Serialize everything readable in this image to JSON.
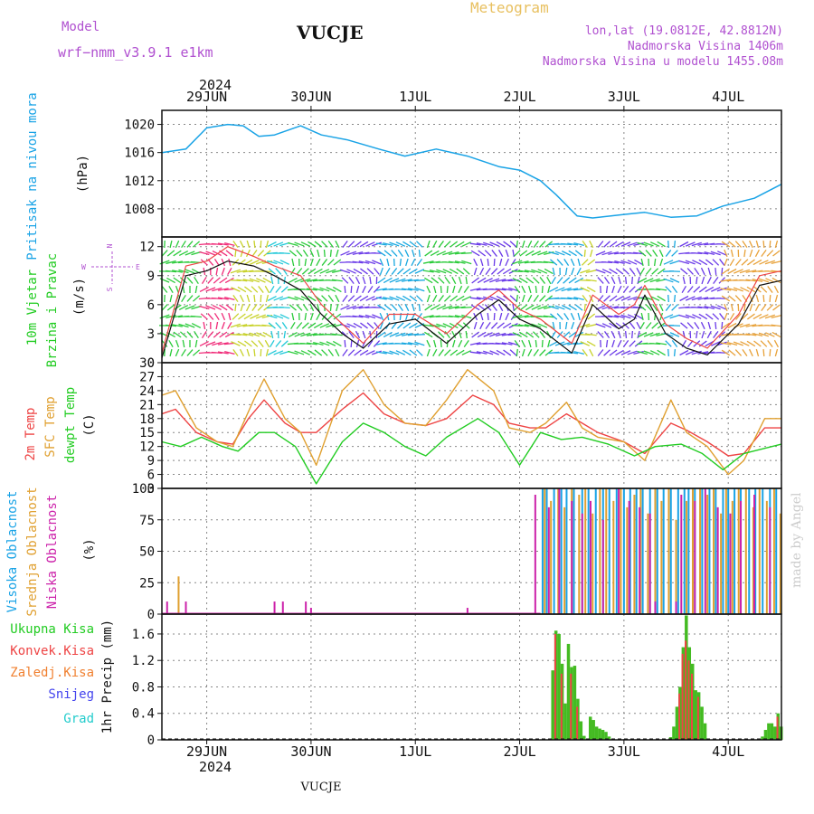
{
  "header": {
    "model_label": "Model",
    "model_name": "wrf−nmm_v3.9.1  e1km",
    "station": "VUCJE",
    "meteogram": "Meteogram",
    "lonlat": "lon,lat (19.0812E, 42.8812N)",
    "altitude": "Nadmorska Visina 1406m",
    "model_altitude": "Nadmorska Visina u modelu 1455.08m",
    "year": "2024",
    "bottom_title": "VUCJE",
    "credit": "made by Angel"
  },
  "colors": {
    "pressure": "#19a3e6",
    "temp2m": "#ee4444",
    "sfc": "#e0a030",
    "dewpt": "#22cc22",
    "grid": "#888888",
    "wind_mag": "#111111",
    "wind_gust": "#ee4444",
    "cloud_high": "#19a3e6",
    "cloud_mid": "#e0a030",
    "cloud_low": "#cc22aa",
    "precip_total": "#44bb22",
    "precip_conv": "#ee4444",
    "label_purple": "#b050d0"
  },
  "x_axis": {
    "top_labels": [
      "29JUN",
      "30JUN",
      "1JUL",
      "2JUL",
      "3JUL",
      "4JUL"
    ],
    "bottom_labels": [
      "29JUN",
      "30JUN",
      "1JUL",
      "2JUL",
      "3JUL",
      "4JUL"
    ],
    "day_positions": [
      1,
      2,
      3,
      4,
      5,
      6
    ],
    "range_days": [
      0.57,
      6.51
    ]
  },
  "chart_data": [
    {
      "type": "line",
      "panel": "pressure",
      "title": "",
      "ylabel": "Pritisak na nivou mora",
      "unit": "(hPa)",
      "ylim": [
        1004,
        1022
      ],
      "yticks": [
        1008,
        1012,
        1016,
        1020
      ],
      "grid": true,
      "series": [
        {
          "name": "Pritisak na nivou mora",
          "x": [
            0.57,
            0.8,
            1.0,
            1.2,
            1.35,
            1.5,
            1.65,
            1.9,
            2.1,
            2.35,
            2.65,
            2.9,
            3.2,
            3.5,
            3.8,
            4.0,
            4.2,
            4.35,
            4.55,
            4.7,
            5.0,
            5.2,
            5.45,
            5.7,
            5.95,
            6.25,
            6.51
          ],
          "y": [
            1016,
            1016.5,
            1019.5,
            1020,
            1019.8,
            1018.3,
            1018.5,
            1019.8,
            1018.5,
            1017.8,
            1016.5,
            1015.5,
            1016.5,
            1015.5,
            1014,
            1013.5,
            1012,
            1010,
            1007,
            1006.7,
            1007.2,
            1007.5,
            1006.8,
            1007,
            1008.4,
            1009.5,
            1011.5
          ]
        }
      ]
    },
    {
      "type": "line",
      "panel": "wind",
      "title": "",
      "ylabel": "10m Vjetar Brzina i Pravac",
      "unit": "(m/s)",
      "ylim": [
        0,
        13
      ],
      "yticks": [
        0,
        3,
        6,
        9,
        12
      ],
      "grid": true,
      "compass": {
        "north": "N",
        "south": "S",
        "west": "W",
        "east": "E"
      },
      "series": [
        {
          "name": "wind speed",
          "x": [
            0.57,
            0.8,
            1.0,
            1.2,
            1.45,
            1.65,
            1.9,
            2.1,
            2.3,
            2.5,
            2.75,
            3.0,
            3.3,
            3.6,
            3.8,
            4.0,
            4.2,
            4.5,
            4.7,
            4.95,
            5.1,
            5.2,
            5.4,
            5.6,
            5.8,
            6.1,
            6.3,
            6.51
          ],
          "y": [
            0.5,
            9,
            9.5,
            10.5,
            10,
            9,
            7.5,
            5,
            3,
            1.5,
            4,
            4.5,
            2,
            5,
            6.5,
            4.5,
            3.5,
            1,
            6,
            3.5,
            4.5,
            7,
            3,
            1.5,
            0.8,
            4,
            8,
            8.5
          ]
        },
        {
          "name": "gust",
          "x": [
            0.57,
            0.8,
            1.0,
            1.2,
            1.45,
            1.65,
            1.9,
            2.1,
            2.3,
            2.5,
            2.75,
            3.0,
            3.3,
            3.6,
            3.8,
            4.0,
            4.2,
            4.5,
            4.7,
            4.95,
            5.1,
            5.2,
            5.4,
            5.6,
            5.8,
            6.1,
            6.3,
            6.51
          ],
          "y": [
            1,
            10,
            10.5,
            12,
            11,
            10,
            9,
            6,
            4,
            2,
            5,
            5,
            3,
            6,
            7.5,
            5.5,
            4.5,
            2,
            7,
            5,
            6,
            8,
            4,
            2.5,
            1.5,
            5,
            9,
            9.5
          ]
        }
      ],
      "barb_bands": [
        {
          "x": [
            0.57,
            0.95
          ],
          "color": "#2acb3a"
        },
        {
          "x": [
            0.95,
            1.25
          ],
          "color": "#f02a78"
        },
        {
          "x": [
            1.25,
            1.6
          ],
          "color": "#c8d22a"
        },
        {
          "x": [
            1.6,
            1.8
          ],
          "color": "#20c8d8"
        },
        {
          "x": [
            1.8,
            2.3
          ],
          "color": "#2acb3a"
        },
        {
          "x": [
            2.3,
            2.65
          ],
          "color": "#6a3ae8"
        },
        {
          "x": [
            2.65,
            3.1
          ],
          "color": "#18a8e0"
        },
        {
          "x": [
            3.1,
            3.55
          ],
          "color": "#2acb3a"
        },
        {
          "x": [
            3.55,
            3.95
          ],
          "color": "#6a3ae8"
        },
        {
          "x": [
            3.95,
            4.3
          ],
          "color": "#2acb3a"
        },
        {
          "x": [
            4.3,
            4.6
          ],
          "color": "#18a8e0"
        },
        {
          "x": [
            4.6,
            4.75
          ],
          "color": "#c8d22a"
        },
        {
          "x": [
            4.75,
            5.15
          ],
          "color": "#6a3ae8"
        },
        {
          "x": [
            5.15,
            5.4
          ],
          "color": "#2acb3a"
        },
        {
          "x": [
            5.4,
            5.55
          ],
          "color": "#18a8e0"
        },
        {
          "x": [
            5.55,
            5.95
          ],
          "color": "#6a3ae8"
        },
        {
          "x": [
            5.95,
            6.51
          ],
          "color": "#e8a23a"
        }
      ]
    },
    {
      "type": "line",
      "panel": "temperature",
      "title": "",
      "ylabel": "2m Temp / SFC Temp / dewpt Temp",
      "unit": "(C)",
      "ylim": [
        3,
        30
      ],
      "yticks": [
        3,
        6,
        9,
        12,
        15,
        18,
        21,
        24,
        27,
        30
      ],
      "grid": true,
      "series": [
        {
          "name": "2m Temp",
          "x": [
            0.57,
            0.7,
            0.9,
            1.1,
            1.25,
            1.4,
            1.55,
            1.75,
            1.9,
            2.05,
            2.3,
            2.5,
            2.7,
            2.9,
            3.1,
            3.3,
            3.55,
            3.75,
            3.9,
            4.1,
            4.25,
            4.45,
            4.6,
            4.75,
            5.0,
            5.2,
            5.45,
            5.6,
            5.8,
            6.0,
            6.15,
            6.35,
            6.51
          ],
          "y": [
            19,
            20,
            15,
            13,
            12.5,
            18,
            22,
            17,
            15,
            15,
            20,
            23.5,
            19,
            17,
            16.5,
            18,
            23,
            21,
            17,
            16,
            16,
            19,
            17,
            15,
            13,
            10.5,
            17,
            15.5,
            13,
            10,
            10.5,
            16,
            16
          ]
        },
        {
          "name": "SFC Temp",
          "x": [
            0.57,
            0.7,
            0.9,
            1.1,
            1.25,
            1.45,
            1.55,
            1.75,
            1.9,
            2.05,
            2.3,
            2.5,
            2.7,
            2.9,
            3.1,
            3.3,
            3.5,
            3.75,
            3.9,
            4.1,
            4.25,
            4.45,
            4.6,
            4.75,
            5.0,
            5.2,
            5.45,
            5.6,
            5.8,
            6.0,
            6.15,
            6.35,
            6.51
          ],
          "y": [
            23,
            24,
            16,
            13,
            12,
            22,
            26.5,
            18,
            15,
            8,
            24,
            28.5,
            21,
            17,
            16.5,
            22,
            28.5,
            24,
            16,
            15,
            17,
            21.5,
            16,
            14,
            13,
            9,
            22,
            15,
            12,
            6,
            9,
            18,
            18
          ]
        },
        {
          "name": "dewpt Temp",
          "x": [
            0.57,
            0.75,
            0.95,
            1.15,
            1.3,
            1.5,
            1.65,
            1.85,
            2.05,
            2.3,
            2.5,
            2.7,
            2.9,
            3.1,
            3.3,
            3.6,
            3.8,
            4.0,
            4.2,
            4.4,
            4.6,
            4.85,
            5.1,
            5.3,
            5.55,
            5.75,
            5.95,
            6.15,
            6.51
          ],
          "y": [
            13,
            12,
            14,
            12,
            11,
            15,
            15,
            12,
            4,
            13,
            17,
            15,
            12,
            10,
            14,
            18,
            15,
            8,
            15,
            13.5,
            14,
            12.5,
            10,
            12,
            12.5,
            10.5,
            7,
            10.5,
            12.5
          ]
        }
      ]
    },
    {
      "type": "bar",
      "panel": "clouds",
      "title": "",
      "ylabel": "Visoka Oblacnost / Srednja Oblacnost / Niska Oblacnost",
      "unit": "(%)",
      "ylim": [
        0,
        100
      ],
      "yticks": [
        0,
        25,
        50,
        75,
        100
      ],
      "grid": true,
      "series": [
        {
          "name": "Visoka Oblacnost",
          "x": [
            4.22,
            4.26,
            4.33,
            4.4,
            4.45,
            4.52,
            4.6,
            4.66,
            4.73,
            4.8,
            4.86,
            4.93,
            5.0,
            5.06,
            5.12,
            5.18,
            5.25,
            5.32,
            5.38,
            5.45,
            5.52,
            5.58,
            5.62,
            5.68,
            5.75,
            5.82,
            5.88,
            5.95,
            6.0,
            6.06,
            6.12,
            6.2,
            6.26,
            6.33,
            6.4,
            6.46
          ],
          "y": [
            100,
            100,
            100,
            100,
            100,
            100,
            100,
            100,
            100,
            100,
            100,
            100,
            100,
            100,
            100,
            100,
            100,
            100,
            100,
            100,
            100,
            100,
            100,
            100,
            100,
            100,
            100,
            100,
            100,
            100,
            100,
            100,
            100,
            100,
            100,
            100
          ]
        },
        {
          "name": "Srednja Oblacnost",
          "x": [
            0.73,
            4.24,
            4.3,
            4.37,
            4.43,
            4.5,
            4.57,
            4.63,
            4.7,
            4.77,
            4.83,
            4.9,
            4.97,
            5.03,
            5.1,
            5.16,
            5.23,
            5.3,
            5.36,
            5.43,
            5.5,
            5.6,
            5.66,
            5.73,
            5.8,
            5.86,
            5.93,
            5.98,
            6.04,
            6.1,
            6.17,
            6.24,
            6.3,
            6.37,
            6.44,
            6.5
          ],
          "y": [
            30,
            100,
            90,
            100,
            85,
            100,
            95,
            100,
            80,
            100,
            100,
            90,
            100,
            85,
            95,
            100,
            80,
            100,
            90,
            100,
            75,
            90,
            100,
            100,
            95,
            100,
            80,
            100,
            90,
            100,
            100,
            85,
            100,
            90,
            100,
            80
          ]
        },
        {
          "name": "Niska Oblacnost",
          "x": [
            0.62,
            0.8,
            1.65,
            1.73,
            1.95,
            2.0,
            3.5,
            4.15,
            4.28,
            4.38,
            4.5,
            4.6,
            4.68,
            4.8,
            4.95,
            5.05,
            5.15,
            5.25,
            5.3,
            5.5,
            5.55,
            5.68,
            5.78,
            5.9,
            6.02,
            6.12,
            6.25,
            6.4
          ],
          "y": [
            10,
            10,
            10,
            10,
            10,
            5,
            5,
            95,
            85,
            100,
            90,
            80,
            90,
            75,
            100,
            90,
            85,
            80,
            10,
            10,
            95,
            90,
            100,
            85,
            80,
            90,
            95,
            85
          ]
        }
      ]
    },
    {
      "type": "bar",
      "panel": "precip",
      "title": "",
      "ylabel": "1hr Precip (mm)",
      "ylim": [
        0,
        1.9
      ],
      "yticks": [
        0,
        0.4,
        0.8,
        1.2,
        1.6
      ],
      "grid": true,
      "legend": [
        "Ukupna  Kisa",
        "Konvek.Kisa",
        "Zaledj.Kisa",
        "Snijeg",
        "Grad"
      ],
      "series": [
        {
          "name": "Ukupna Kisa",
          "x": [
            4.32,
            4.35,
            4.38,
            4.41,
            4.44,
            4.47,
            4.5,
            4.53,
            4.56,
            4.59,
            4.62,
            4.68,
            4.71,
            4.74,
            4.77,
            4.8,
            4.83,
            4.86,
            5.45,
            5.48,
            5.51,
            5.54,
            5.57,
            5.6,
            5.63,
            5.66,
            5.69,
            5.72,
            5.75,
            5.78,
            6.33,
            6.36,
            6.39,
            6.42,
            6.45,
            6.48,
            6.51
          ],
          "y": [
            1.05,
            1.65,
            1.6,
            1.15,
            0.55,
            1.45,
            1.1,
            1.12,
            0.62,
            0.28,
            0.06,
            0.35,
            0.3,
            0.2,
            0.17,
            0.15,
            0.12,
            0.05,
            0.04,
            0.2,
            0.5,
            0.8,
            1.4,
            1.88,
            1.4,
            1.15,
            0.75,
            0.72,
            0.5,
            0.25,
            0.05,
            0.15,
            0.25,
            0.25,
            0.2,
            0.4,
            0.2
          ]
        },
        {
          "name": "Konvek.Kisa",
          "x": [
            4.35,
            4.41,
            4.5,
            4.56,
            5.54,
            5.57,
            5.6,
            5.63,
            5.66,
            5.72,
            6.48
          ],
          "y": [
            1.6,
            1.0,
            1.0,
            0.5,
            0.7,
            1.3,
            1.5,
            1.2,
            1.0,
            0.65,
            0.35
          ]
        }
      ]
    }
  ]
}
